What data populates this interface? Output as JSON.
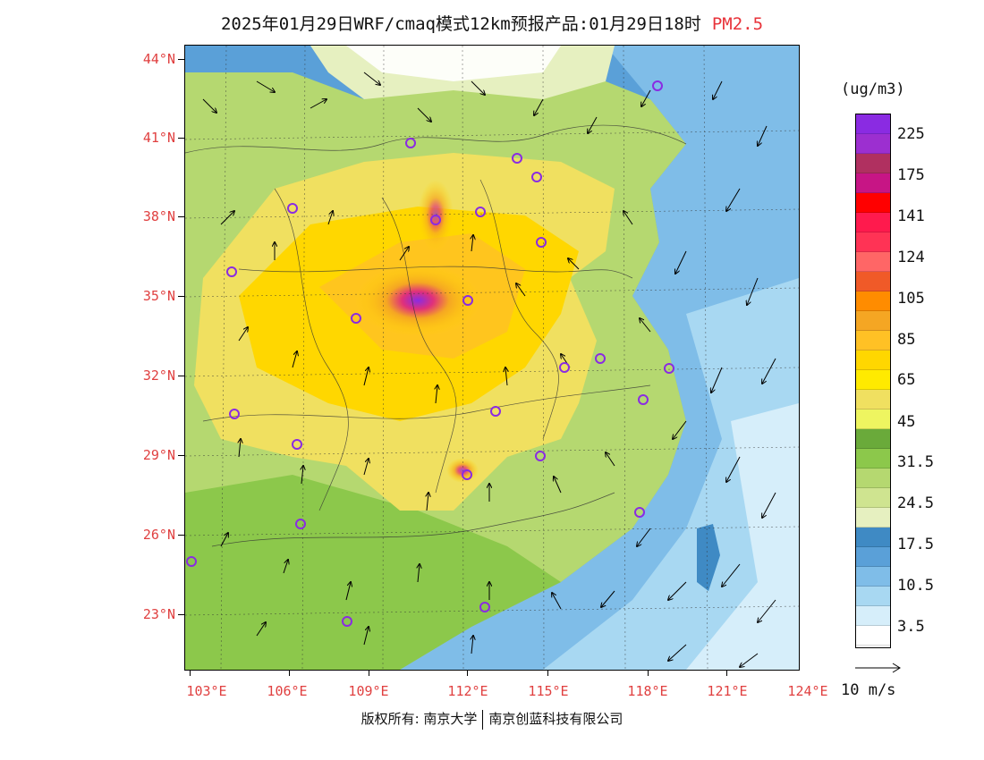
{
  "header": {
    "title": "2025年01月29日WRF/cmaq模式12km预报产品:01月29日18时",
    "species": "PM2.5"
  },
  "map": {
    "lat_labels": [
      "44°N",
      "41°N",
      "38°N",
      "35°N",
      "32°N",
      "29°N",
      "26°N",
      "23°N"
    ],
    "lon_labels": [
      "103°E",
      "106°E",
      "109°E",
      "112°E",
      "115°E",
      "118°E",
      "121°E",
      "124°E"
    ]
  },
  "legend": {
    "unit": "(ug/m3)",
    "labels": [
      "225",
      "175",
      "141",
      "124",
      "105",
      "85",
      "65",
      "45",
      "31.5",
      "24.5",
      "17.5",
      "10.5",
      "3.5"
    ],
    "colors_top_to_bottom": [
      "#8a2be2",
      "#9c2fd0",
      "#b03060",
      "#c71585",
      "#ff0000",
      "#ff1a4d",
      "#ff3355",
      "#ff6666",
      "#f05a28",
      "#ff8c00",
      "#f5a623",
      "#ffc125",
      "#ffd700",
      "#ffea00",
      "#f0e060",
      "#eef560",
      "#6aaa3a",
      "#8cc84b",
      "#b5d870",
      "#cfe490",
      "#e6f0c0",
      "#3f8ac4",
      "#5aa0d8",
      "#7fbde8",
      "#a8d8f2",
      "#d6eefa",
      "#ffffff"
    ],
    "wind_vector_label": "10 m/s"
  },
  "footer": {
    "copyright_left": "版权所有: 南京大学",
    "copyright_right": "南京创蓝科技有限公司"
  }
}
